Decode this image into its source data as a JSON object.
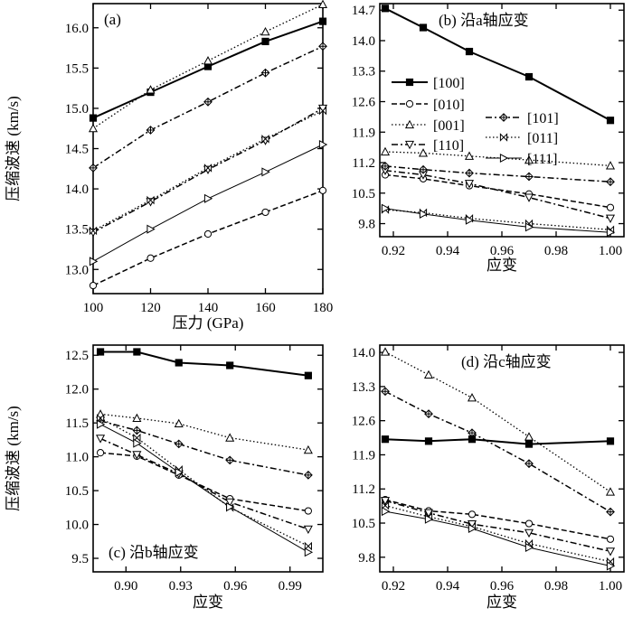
{
  "legend": {
    "items": [
      {
        "name": "[100]",
        "marker": "square",
        "style": "solid"
      },
      {
        "name": "[010]",
        "marker": "circle",
        "style": "dashed"
      },
      {
        "name": "[001]",
        "marker": "triangle-up",
        "style": "dotted"
      },
      {
        "name": "[110]",
        "marker": "triangle-down",
        "style": "dashdot"
      },
      {
        "name": "[101]",
        "marker": "diamond-cross",
        "style": "dashdot"
      },
      {
        "name": "[011]",
        "marker": "bowtie",
        "style": "dotted"
      },
      {
        "name": "[111]",
        "marker": "triangle-right",
        "style": "solid-thin"
      }
    ]
  },
  "chart_data": [
    {
      "type": "line",
      "title": "(a)",
      "xlabel": "压力 (GPa)",
      "ylabel": "压缩波速 (km/s)",
      "xlim": [
        100,
        180
      ],
      "ylim": [
        12.7,
        16.3
      ],
      "xticks": [
        100,
        120,
        140,
        160,
        180
      ],
      "yticks": [
        13.0,
        13.5,
        14.0,
        14.5,
        15.0,
        15.5,
        16.0
      ],
      "tick_decimals_x": 0,
      "tick_decimals_y": 1,
      "x": [
        100,
        120,
        140,
        160,
        180
      ],
      "series": [
        {
          "name": "[100]",
          "values": [
            14.88,
            15.2,
            15.52,
            15.83,
            16.08
          ]
        },
        {
          "name": "[010]",
          "values": [
            12.8,
            13.14,
            13.44,
            13.71,
            13.98
          ]
        },
        {
          "name": "[001]",
          "values": [
            14.75,
            15.23,
            15.59,
            15.95,
            16.29
          ]
        },
        {
          "name": "[110]",
          "values": [
            13.46,
            13.84,
            14.24,
            14.6,
            15.0
          ]
        },
        {
          "name": "[101]",
          "values": [
            14.26,
            14.73,
            15.08,
            15.44,
            15.77
          ]
        },
        {
          "name": "[011]",
          "values": [
            13.48,
            13.86,
            14.26,
            14.62,
            14.97
          ]
        },
        {
          "name": "[111]",
          "values": [
            13.1,
            13.5,
            13.88,
            14.21,
            14.55
          ]
        }
      ]
    },
    {
      "type": "line",
      "title": "(b) 沿a轴应变",
      "xlabel": "应变",
      "ylabel": "",
      "xlim": [
        0.915,
        1.005
      ],
      "ylim": [
        9.5,
        14.85
      ],
      "xticks": [
        0.92,
        0.94,
        0.96,
        0.98,
        1.0
      ],
      "yticks": [
        9.8,
        10.5,
        11.2,
        11.9,
        12.6,
        13.3,
        14.0,
        14.7
      ],
      "tick_decimals_x": 2,
      "tick_decimals_y": 1,
      "x": [
        0.917,
        0.931,
        0.948,
        0.97,
        1.0
      ],
      "series": [
        {
          "name": "[100]",
          "values": [
            14.74,
            14.3,
            13.75,
            13.17,
            12.17
          ]
        },
        {
          "name": "[010]",
          "values": [
            10.92,
            10.83,
            10.67,
            10.48,
            10.17
          ]
        },
        {
          "name": "[001]",
          "values": [
            11.45,
            11.42,
            11.35,
            11.26,
            11.13
          ]
        },
        {
          "name": "[110]",
          "values": [
            11.02,
            10.92,
            10.72,
            10.4,
            9.92
          ]
        },
        {
          "name": "[101]",
          "values": [
            11.12,
            11.04,
            10.96,
            10.88,
            10.76
          ]
        },
        {
          "name": "[011]",
          "values": [
            10.12,
            10.05,
            9.92,
            9.8,
            9.66
          ]
        },
        {
          "name": "[111]",
          "values": [
            10.15,
            10.02,
            9.88,
            9.72,
            9.6
          ]
        }
      ]
    },
    {
      "type": "line",
      "title": "(c) 沿b轴应变",
      "xlabel": "应变",
      "ylabel": "压缩波速 (km/s)",
      "xlim": [
        0.882,
        1.008
      ],
      "ylim": [
        9.3,
        12.65
      ],
      "xticks": [
        0.9,
        0.93,
        0.96,
        0.99
      ],
      "yticks": [
        9.5,
        10.0,
        10.5,
        11.0,
        11.5,
        12.0,
        12.5
      ],
      "tick_decimals_x": 2,
      "tick_decimals_y": 1,
      "x": [
        0.886,
        0.906,
        0.929,
        0.957,
        1.0
      ],
      "series": [
        {
          "name": "[100]",
          "values": [
            12.55,
            12.55,
            12.39,
            12.35,
            12.2
          ]
        },
        {
          "name": "[010]",
          "values": [
            11.06,
            11.01,
            10.73,
            10.38,
            10.2
          ]
        },
        {
          "name": "[001]",
          "values": [
            11.63,
            11.57,
            11.49,
            11.28,
            11.1
          ]
        },
        {
          "name": "[110]",
          "values": [
            11.27,
            11.03,
            10.75,
            10.33,
            9.93
          ]
        },
        {
          "name": "[101]",
          "values": [
            11.53,
            11.39,
            11.19,
            10.95,
            10.73
          ]
        },
        {
          "name": "[011]",
          "values": [
            11.57,
            11.28,
            10.81,
            10.25,
            9.68
          ]
        },
        {
          "name": "[111]",
          "values": [
            11.48,
            11.2,
            10.77,
            10.26,
            9.59
          ]
        }
      ]
    },
    {
      "type": "line",
      "title": "(d) 沿c轴应变",
      "xlabel": "应变",
      "ylabel": "",
      "xlim": [
        0.915,
        1.005
      ],
      "ylim": [
        9.5,
        14.15
      ],
      "xticks": [
        0.92,
        0.94,
        0.96,
        0.98,
        1.0
      ],
      "yticks": [
        9.8,
        10.5,
        11.2,
        11.9,
        12.6,
        13.3,
        14.0
      ],
      "tick_decimals_x": 2,
      "tick_decimals_y": 1,
      "x": [
        0.917,
        0.933,
        0.949,
        0.97,
        1.0
      ],
      "series": [
        {
          "name": "[100]",
          "values": [
            12.22,
            12.18,
            12.22,
            12.12,
            12.18
          ]
        },
        {
          "name": "[010]",
          "values": [
            10.98,
            10.75,
            10.68,
            10.49,
            10.17
          ]
        },
        {
          "name": "[001]",
          "values": [
            14.01,
            13.54,
            13.07,
            12.27,
            11.14
          ]
        },
        {
          "name": "[110]",
          "values": [
            10.96,
            10.71,
            10.48,
            10.3,
            9.92
          ]
        },
        {
          "name": "[101]",
          "values": [
            13.2,
            12.74,
            12.35,
            11.72,
            10.73
          ]
        },
        {
          "name": "[011]",
          "values": [
            10.86,
            10.63,
            10.43,
            10.08,
            9.71
          ]
        },
        {
          "name": "[111]",
          "values": [
            10.74,
            10.58,
            10.39,
            10.0,
            9.62
          ]
        }
      ]
    }
  ]
}
